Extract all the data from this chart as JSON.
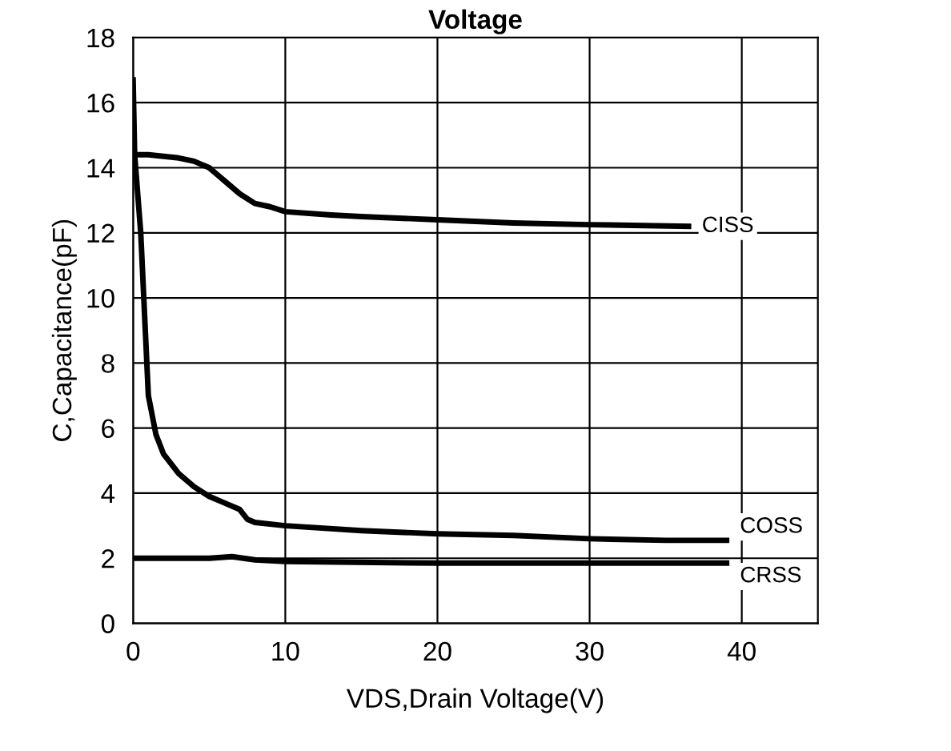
{
  "chart_data": {
    "type": "line",
    "title": "Voltage",
    "xlabel": "VDS,Drain Voltage(V)",
    "ylabel": "C,Capacitance(pF)",
    "xlim": [
      0,
      45
    ],
    "xticks": [
      0,
      10,
      20,
      30,
      40
    ],
    "ylim": [
      0,
      18
    ],
    "yticks": [
      0,
      2,
      4,
      6,
      8,
      10,
      12,
      14,
      16,
      18
    ],
    "grid": true,
    "legend": false,
    "marker": "none",
    "line_style": "solid",
    "series": [
      {
        "name": "CISS",
        "color": "#000000",
        "x": [
          0,
          1,
          2,
          3,
          4,
          5,
          5.5,
          6,
          7,
          8,
          9,
          10,
          13,
          15,
          20,
          25,
          30,
          36.5
        ],
        "values": [
          14.4,
          14.4,
          14.35,
          14.3,
          14.2,
          14.0,
          13.8,
          13.6,
          13.2,
          12.9,
          12.8,
          12.65,
          12.55,
          12.5,
          12.4,
          12.3,
          12.25,
          12.2
        ]
      },
      {
        "name": "COSS",
        "color": "#000000",
        "x": [
          0,
          0.1,
          0.5,
          0.8,
          1.0,
          1.5,
          2,
          3,
          4,
          5,
          6,
          7,
          7.5,
          8,
          10,
          15,
          20,
          25,
          30,
          35,
          39
        ],
        "values": [
          16.7,
          14.4,
          12,
          9,
          7.0,
          5.8,
          5.2,
          4.6,
          4.2,
          3.9,
          3.7,
          3.5,
          3.2,
          3.1,
          3.0,
          2.85,
          2.75,
          2.7,
          2.6,
          2.55,
          2.55
        ]
      },
      {
        "name": "CRSS",
        "color": "#000000",
        "x": [
          0,
          5,
          6.5,
          8,
          10,
          20,
          30,
          39
        ],
        "values": [
          2.0,
          2.0,
          2.05,
          1.95,
          1.9,
          1.85,
          1.85,
          1.85
        ]
      }
    ]
  }
}
